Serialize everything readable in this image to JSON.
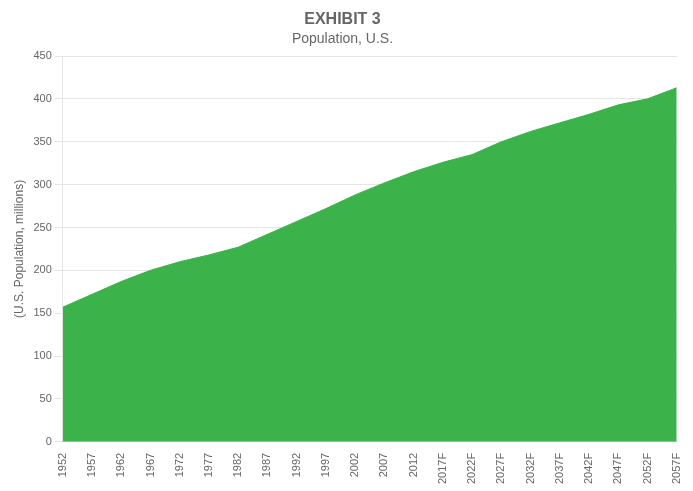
{
  "chart_data": {
    "type": "area",
    "title": "EXHIBIT 3",
    "subtitle": "Population, U.S.",
    "y_label": "(U.S. Population, millions)",
    "x": [
      1952,
      1957,
      1962,
      1967,
      1972,
      1977,
      1982,
      1987,
      1992,
      1997,
      2002,
      2007,
      2012,
      2017,
      2022,
      2027,
      2032,
      2037,
      2042,
      2047,
      2052,
      2057
    ],
    "values": [
      157,
      172,
      187,
      200,
      210,
      218,
      227,
      242,
      257,
      272,
      288,
      302,
      315,
      326,
      335,
      350,
      362,
      372,
      382,
      393,
      400,
      413
    ],
    "color": "#3bb34a",
    "xlim": [
      1952,
      2057
    ],
    "xticks": [
      1952,
      1957,
      1962,
      1967,
      1972,
      1977,
      1982,
      1987,
      1992,
      1997,
      2002,
      2007,
      2012,
      {
        "value": 2017,
        "label": "2017F"
      },
      {
        "value": 2022,
        "label": "2022F"
      },
      {
        "value": 2027,
        "label": "2027F"
      },
      {
        "value": 2032,
        "label": "2032F"
      },
      {
        "value": 2037,
        "label": "2037F"
      },
      {
        "value": 2042,
        "label": "2042F"
      },
      {
        "value": 2047,
        "label": "2047F"
      },
      {
        "value": 2052,
        "label": "2052F"
      },
      {
        "value": 2057,
        "label": "2057F"
      }
    ],
    "ylim": [
      0,
      450
    ],
    "yticks": [
      0,
      50,
      100,
      150,
      200,
      250,
      300,
      350,
      400,
      450
    ],
    "grid": true
  }
}
